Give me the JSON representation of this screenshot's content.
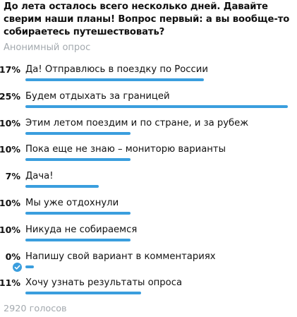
{
  "poll": {
    "question": "До лета осталось всего несколько дней. Давайте сверим наши планы! Вопрос первый: а вы вообще-то собираетесь путешествовать?",
    "type_label": "Анонимный опрос",
    "options": [
      {
        "label": "Да! Отправлюсь в поездку по России",
        "percent_text": "17%",
        "fraction": 0.17,
        "chosen": false
      },
      {
        "label": "Будем отдыхать за границей",
        "percent_text": "25%",
        "fraction": 0.25,
        "chosen": false
      },
      {
        "label": "Этим летом поездим и по стране, и за рубеж",
        "percent_text": "10%",
        "fraction": 0.1,
        "chosen": false
      },
      {
        "label": "Пока еще не знаю – мониторю варианты",
        "percent_text": "10%",
        "fraction": 0.1,
        "chosen": false
      },
      {
        "label": "Дача!",
        "percent_text": "7%",
        "fraction": 0.07,
        "chosen": false
      },
      {
        "label": "Мы уже отдохнули",
        "percent_text": "10%",
        "fraction": 0.1,
        "chosen": false
      },
      {
        "label": "Никуда не собираемся",
        "percent_text": "10%",
        "fraction": 0.1,
        "chosen": false
      },
      {
        "label": "Напишу свой вариант в комментариях",
        "percent_text": "0%",
        "fraction": 0.0,
        "chosen": true
      },
      {
        "label": "Хочу узнать результаты опроса",
        "percent_text": "11%",
        "fraction": 0.11,
        "chosen": false
      }
    ],
    "total_votes": "2920 голосов"
  },
  "colors": {
    "bar": "#3a9ede",
    "muted_text": "#a3a9ae",
    "check": "#3a9ede"
  },
  "icons": {
    "chosen": "checkmark-circle-icon"
  }
}
